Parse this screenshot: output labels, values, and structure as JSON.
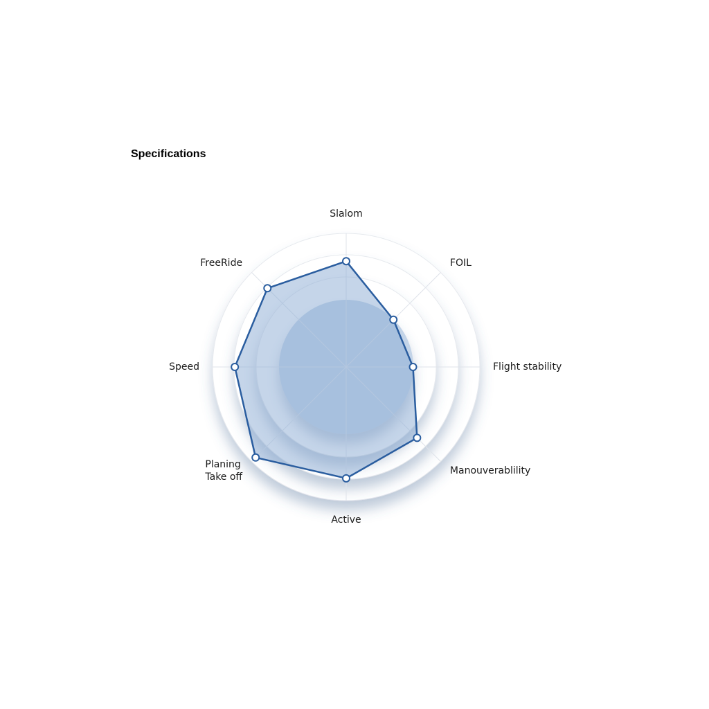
{
  "chart_data": {
    "type": "radar",
    "title": "Specifications",
    "categories": [
      "Slalom",
      "FOIL",
      "Flight stability",
      "Manouverablility",
      "Active",
      "Planing\nTake off",
      "Speed",
      "FreeRide"
    ],
    "values": [
      4.75,
      3,
      3,
      4.5,
      5,
      5.75,
      5,
      5
    ],
    "color": "#2a5d9f",
    "ylim": [
      0,
      6
    ]
  }
}
